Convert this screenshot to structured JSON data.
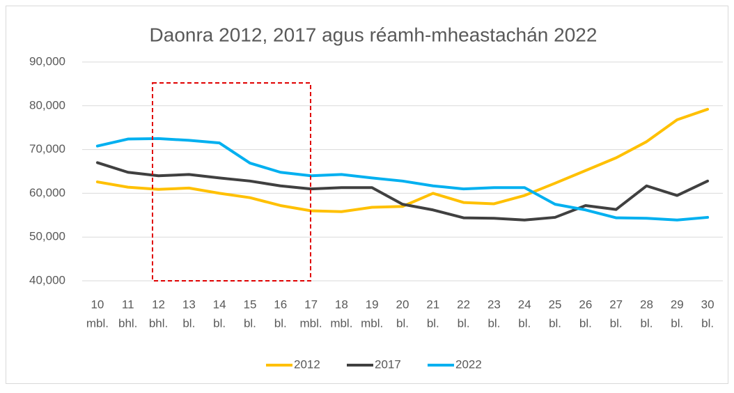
{
  "chart_data": {
    "type": "line",
    "title": "Daonra 2012, 2017 agus réamh-mheastachán 2022",
    "categories": [
      [
        "10",
        "mbl."
      ],
      [
        "11",
        "bhl."
      ],
      [
        "12",
        "bhl."
      ],
      [
        "13",
        "bl."
      ],
      [
        "14",
        "bl."
      ],
      [
        "15",
        "bl."
      ],
      [
        "16",
        "bl."
      ],
      [
        "17",
        "mbl."
      ],
      [
        "18",
        "mbl."
      ],
      [
        "19",
        "mbl."
      ],
      [
        "20",
        "bl."
      ],
      [
        "21",
        "bl."
      ],
      [
        "22",
        "bl."
      ],
      [
        "23",
        "bl."
      ],
      [
        "24",
        "bl."
      ],
      [
        "25",
        "bl."
      ],
      [
        "26",
        "bl."
      ],
      [
        "27",
        "bl."
      ],
      [
        "28",
        "bl."
      ],
      [
        "29",
        "bl."
      ],
      [
        "30",
        "bl."
      ]
    ],
    "series": [
      {
        "name": "2012",
        "color": "#ffc000",
        "values": [
          62600,
          61400,
          60900,
          61200,
          60000,
          59000,
          57200,
          56000,
          55800,
          56800,
          57000,
          60000,
          57900,
          57600,
          59500,
          62300,
          65200,
          68100,
          71800,
          76800,
          79200
        ]
      },
      {
        "name": "2017",
        "color": "#404040",
        "values": [
          67000,
          64800,
          64000,
          64300,
          63500,
          62800,
          61700,
          61000,
          61300,
          61300,
          57500,
          56200,
          54400,
          54300,
          53900,
          54500,
          57200,
          56300,
          61700,
          59500,
          62800
        ]
      },
      {
        "name": "2022",
        "color": "#00b0f0",
        "values": [
          70800,
          72400,
          72500,
          72100,
          71500,
          66900,
          64800,
          64000,
          64300,
          63500,
          62800,
          61700,
          61000,
          61300,
          61300,
          57500,
          56200,
          54400,
          54300,
          53900,
          54500
        ]
      }
    ],
    "ylim": [
      40000,
      90000
    ],
    "yticks": [
      {
        "value": 40000,
        "label": "40,000"
      },
      {
        "value": 50000,
        "label": "50,000"
      },
      {
        "value": 60000,
        "label": "60,000"
      },
      {
        "value": 70000,
        "label": "70,000"
      },
      {
        "value": 80000,
        "label": "80,000"
      },
      {
        "value": 90000,
        "label": "90,000"
      }
    ],
    "grid": true,
    "legend": "bottom"
  }
}
